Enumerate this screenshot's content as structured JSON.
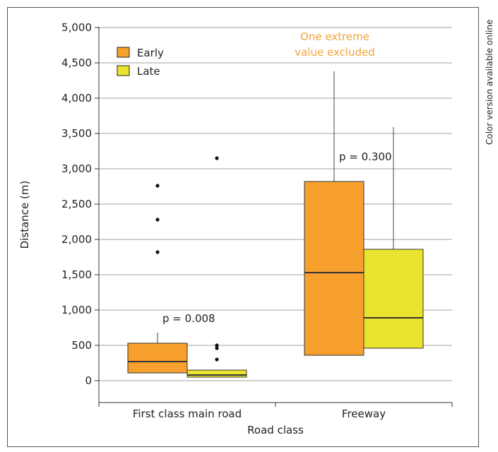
{
  "side_note": "Color version available online",
  "colors": {
    "early": "#f7a02e",
    "late": "#ebe42e",
    "annotation": "#f2a33a",
    "grid": "#a0a0a0",
    "axis": "#333333"
  },
  "chart_data": {
    "type": "box",
    "title": "",
    "xlabel": "Road class",
    "ylabel": "Distance (m)",
    "ylim": [
      0,
      5000
    ],
    "yticks": [
      0,
      500,
      1000,
      1500,
      2000,
      2500,
      3000,
      3500,
      4000,
      4500,
      5000
    ],
    "ytick_labels": [
      "0",
      "500",
      "1,000",
      "1,500",
      "2,000",
      "2,500",
      "3,000",
      "3,500",
      "4,000",
      "4,500",
      "5,000"
    ],
    "grid": true,
    "legend_position": "top-left",
    "categories": [
      "First class main road",
      "Freeway"
    ],
    "series": [
      {
        "name": "Early",
        "color": "#f7a02e",
        "boxes": [
          {
            "category": "First class main road",
            "whisker_low": 110,
            "q1": 110,
            "median": 270,
            "q3": 530,
            "whisker_high": 680,
            "outliers": [
              1820,
              2280,
              2760
            ]
          },
          {
            "category": "Freeway",
            "whisker_low": 360,
            "q1": 360,
            "median": 1530,
            "q3": 2820,
            "whisker_high": 4380,
            "outliers": []
          }
        ]
      },
      {
        "name": "Late",
        "color": "#ebe42e",
        "boxes": [
          {
            "category": "First class main road",
            "whisker_low": 50,
            "q1": 50,
            "median": 80,
            "q3": 150,
            "whisker_high": 150,
            "outliers": [
              300,
              460,
              500,
              3150
            ]
          },
          {
            "category": "Freeway",
            "whisker_low": 460,
            "q1": 460,
            "median": 890,
            "q3": 1860,
            "whisker_high": 3590,
            "outliers": []
          }
        ]
      }
    ],
    "annotations": [
      {
        "text": "p = 0.008",
        "category": "First class main road",
        "y": 830
      },
      {
        "text": "p = 0.300",
        "category": "Freeway",
        "y": 3120
      }
    ],
    "note_lines": [
      "One extreme",
      "value excluded"
    ]
  }
}
